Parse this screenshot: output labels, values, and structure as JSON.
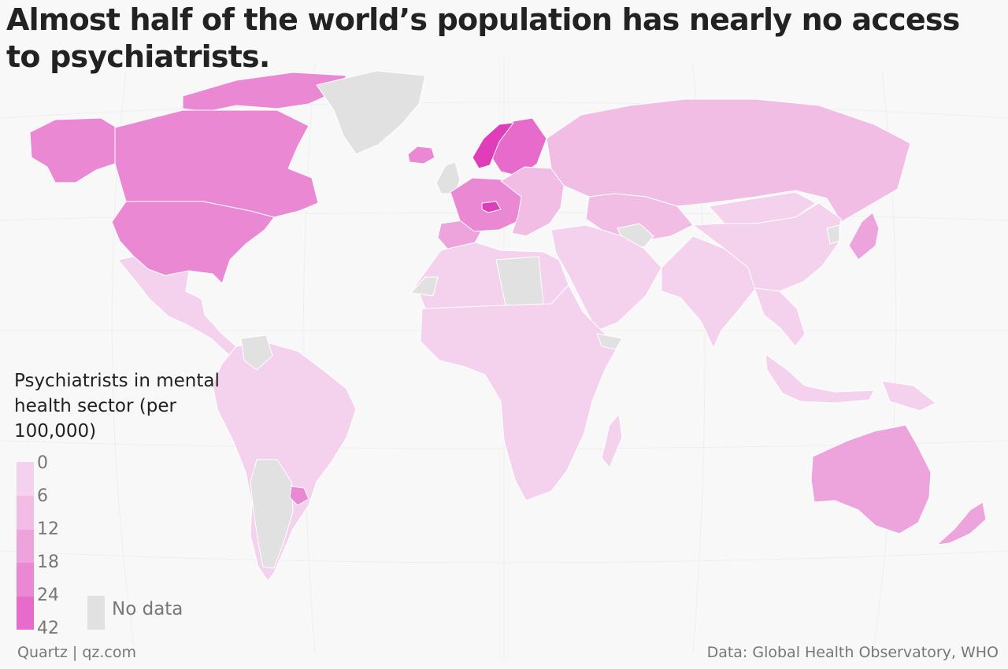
{
  "title": "Almost half of the world’s population has nearly no access to psychiatrists.",
  "legend": {
    "title": "Psychiatrists in mental health sector (per 100,000)",
    "ticks": [
      "0",
      "6",
      "12",
      "18",
      "24",
      "42"
    ],
    "colors": [
      "#f4d1ec",
      "#f2bde4",
      "#eda3dc",
      "#ea88d3",
      "#e66bcb",
      "#e03dbb"
    ],
    "no_data_label": "No data",
    "no_data_color": "#e1e1e1"
  },
  "footer": {
    "source_left": "Quartz | qz.com",
    "source_right": "Data: Global Health Observatory, WHO"
  },
  "regions": [
    {
      "name": "canada",
      "bin": 3
    },
    {
      "name": "usa",
      "bin": 3
    },
    {
      "name": "alaska",
      "bin": 3
    },
    {
      "name": "canadian-arctic",
      "bin": 3
    },
    {
      "name": "greenland",
      "bin": -1
    },
    {
      "name": "iceland",
      "bin": 3
    },
    {
      "name": "mexico-central-america",
      "bin": 0
    },
    {
      "name": "south-america",
      "bin": 0
    },
    {
      "name": "venezuela",
      "bin": -1
    },
    {
      "name": "argentina",
      "bin": -1
    },
    {
      "name": "uruguay",
      "bin": 3
    },
    {
      "name": "uk",
      "bin": -1
    },
    {
      "name": "western-europe",
      "bin": 3
    },
    {
      "name": "spain-portugal",
      "bin": 2
    },
    {
      "name": "switzerland",
      "bin": 5
    },
    {
      "name": "scandinavia",
      "bin": 4
    },
    {
      "name": "norway",
      "bin": 5
    },
    {
      "name": "eastern-europe",
      "bin": 1
    },
    {
      "name": "russia",
      "bin": 1
    },
    {
      "name": "kazakhstan-central-asia",
      "bin": 1
    },
    {
      "name": "caucasus",
      "bin": -1
    },
    {
      "name": "middle-east",
      "bin": 0
    },
    {
      "name": "north-africa",
      "bin": 0
    },
    {
      "name": "libya",
      "bin": -1
    },
    {
      "name": "western-sahara",
      "bin": -1
    },
    {
      "name": "africa",
      "bin": 0
    },
    {
      "name": "somalia",
      "bin": -1
    },
    {
      "name": "madagascar",
      "bin": 0
    },
    {
      "name": "india-south-asia",
      "bin": 0
    },
    {
      "name": "china",
      "bin": 0
    },
    {
      "name": "mongolia",
      "bin": 0
    },
    {
      "name": "korea",
      "bin": -1
    },
    {
      "name": "japan",
      "bin": 2
    },
    {
      "name": "southeast-asia",
      "bin": 0
    },
    {
      "name": "indonesia",
      "bin": 0
    },
    {
      "name": "papua-new-guinea",
      "bin": 0
    },
    {
      "name": "australia",
      "bin": 2
    },
    {
      "name": "new-zealand",
      "bin": 2
    }
  ]
}
